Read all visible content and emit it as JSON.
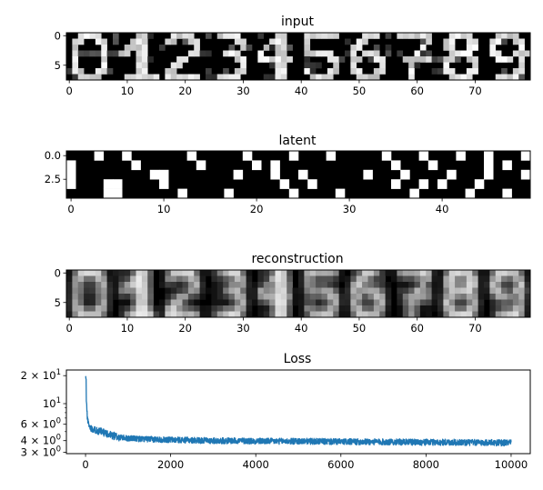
{
  "chart_data": [
    {
      "type": "heatmap",
      "title": "input",
      "description": "8x80 grayscale image: ten 8x8 handwritten digits 0-9 placed side by side",
      "xlim": [
        -0.5,
        79.5
      ],
      "ylim": [
        7.5,
        -0.5
      ],
      "xticks": [
        0,
        10,
        20,
        30,
        40,
        50,
        60,
        70
      ],
      "xtick_labels": [
        "0",
        "10",
        "20",
        "30",
        "40",
        "50",
        "60",
        "70"
      ],
      "yticks": [
        0,
        5
      ],
      "ytick_labels": [
        "0",
        "5"
      ],
      "digits": [
        "0",
        "1",
        "2",
        "3",
        "4",
        "5",
        "6",
        "7",
        "8",
        "9"
      ]
    },
    {
      "type": "heatmap",
      "title": "latent",
      "description": "4x50 binary latent codes (black = 0, white = 1)",
      "xlim": [
        -0.5,
        49.5
      ],
      "ylim": [
        4.5,
        -0.5
      ],
      "xticks": [
        0,
        10,
        20,
        30,
        40
      ],
      "xtick_labels": [
        "0",
        "10",
        "20",
        "30",
        "40"
      ],
      "yticks": [
        0,
        2.5
      ],
      "ytick_labels": [
        "0.0",
        "2.5"
      ],
      "ones": [
        [
          0,
          3
        ],
        [
          0,
          6
        ],
        [
          0,
          13
        ],
        [
          0,
          19
        ],
        [
          0,
          24
        ],
        [
          0,
          28
        ],
        [
          0,
          34
        ],
        [
          0,
          38
        ],
        [
          0,
          42
        ],
        [
          0,
          45
        ],
        [
          0,
          49
        ],
        [
          1,
          0
        ],
        [
          1,
          7
        ],
        [
          1,
          14
        ],
        [
          1,
          20
        ],
        [
          1,
          22
        ],
        [
          1,
          35
        ],
        [
          1,
          39
        ],
        [
          1,
          45
        ],
        [
          1,
          47
        ],
        [
          2,
          0
        ],
        [
          2,
          9
        ],
        [
          2,
          10
        ],
        [
          2,
          18
        ],
        [
          2,
          22
        ],
        [
          2,
          25
        ],
        [
          2,
          32
        ],
        [
          2,
          36
        ],
        [
          2,
          41
        ],
        [
          2,
          45
        ],
        [
          2,
          49
        ],
        [
          3,
          0
        ],
        [
          3,
          4
        ],
        [
          3,
          5
        ],
        [
          3,
          10
        ],
        [
          3,
          23
        ],
        [
          3,
          26
        ],
        [
          3,
          35
        ],
        [
          3,
          38
        ],
        [
          3,
          40
        ],
        [
          3,
          44
        ],
        [
          4,
          4
        ],
        [
          4,
          5
        ],
        [
          4,
          12
        ],
        [
          4,
          17
        ],
        [
          4,
          24
        ],
        [
          4,
          29
        ],
        [
          4,
          37
        ],
        [
          4,
          43
        ],
        [
          4,
          47
        ]
      ]
    },
    {
      "type": "heatmap",
      "title": "reconstruction",
      "description": "8x80 grayscale reconstructions of the ten input digits, blurrier than the input",
      "xlim": [
        -0.5,
        79.5
      ],
      "ylim": [
        7.5,
        -0.5
      ],
      "xticks": [
        0,
        10,
        20,
        30,
        40,
        50,
        60,
        70
      ],
      "xtick_labels": [
        "0",
        "10",
        "20",
        "30",
        "40",
        "50",
        "60",
        "70"
      ],
      "yticks": [
        0,
        5
      ],
      "ytick_labels": [
        "0",
        "5"
      ]
    },
    {
      "type": "line",
      "title": "Loss",
      "yscale": "log",
      "xlim": [
        -450,
        10450
      ],
      "ylim": [
        2.9,
        23
      ],
      "xticks": [
        0,
        2000,
        4000,
        6000,
        8000,
        10000
      ],
      "xtick_labels": [
        "0",
        "2000",
        "4000",
        "6000",
        "8000",
        "10000"
      ],
      "yticks_major": [
        10,
        20,
        3,
        4,
        6
      ],
      "ytick_labels": {
        "10": {
          "base": "10",
          "exp": "1"
        },
        "20": {
          "coef": "2",
          "base": "10",
          "exp": "1"
        },
        "3": {
          "coef": "3",
          "base": "10",
          "exp": "0"
        },
        "4": {
          "coef": "4",
          "base": "10",
          "exp": "0"
        },
        "6": {
          "coef": "6",
          "base": "10",
          "exp": "0"
        }
      },
      "yticks_minor": [
        5,
        7,
        8,
        9
      ],
      "series": [
        {
          "color": "#1f77b4",
          "n_points": 10000,
          "x": [
            0,
            20,
            40,
            70,
            100,
            150,
            200,
            300,
            400,
            500,
            600,
            700,
            800,
            900,
            1000,
            1200,
            1500,
            2000,
            2500,
            3000,
            3500,
            4000,
            4500,
            5000,
            5500,
            6000,
            6500,
            7000,
            7500,
            8000,
            8500,
            9000,
            9500,
            10000
          ],
          "y": [
            20.5,
            10.5,
            7.2,
            6.0,
            5.6,
            5.4,
            5.3,
            5.1,
            4.95,
            4.8,
            4.6,
            4.45,
            4.35,
            4.3,
            4.25,
            4.2,
            4.15,
            4.1,
            4.05,
            4.0,
            4.0,
            3.97,
            3.95,
            3.95,
            3.93,
            3.9,
            3.9,
            3.88,
            3.87,
            3.85,
            3.85,
            3.83,
            3.82,
            3.8
          ],
          "noise_band": [
            0.3,
            0.45
          ]
        }
      ]
    }
  ]
}
